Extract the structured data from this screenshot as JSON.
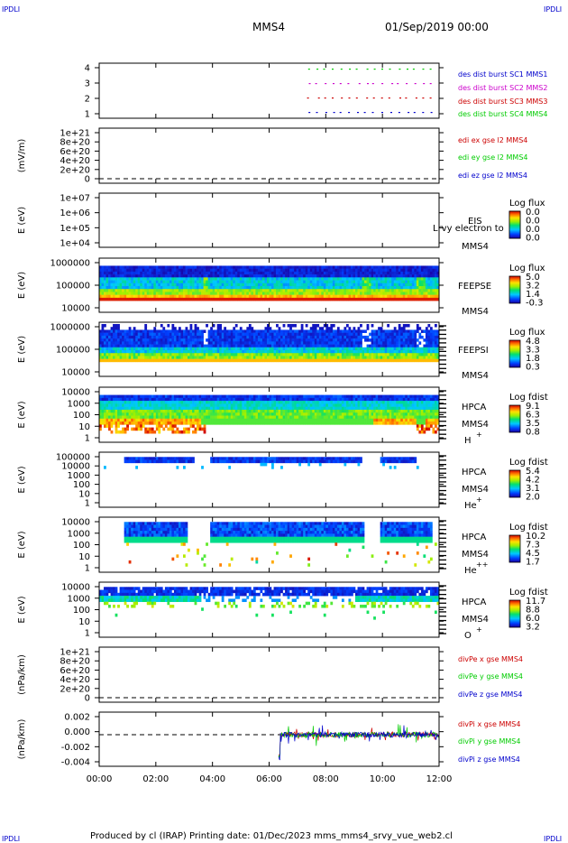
{
  "header": {
    "corner_left": "IPDLI",
    "corner_right": "IPDLI",
    "spacecraft": "MMS4",
    "datetime": "01/Sep/2019 00:00"
  },
  "footer": {
    "text": "Produced by cl (IRAP)   Printing date: 01/Dec/2023   mms_mms4_srvy_vue_web2.cl",
    "corner_left": "IPDLI",
    "corner_right": "IPDLI"
  },
  "colors": {
    "blue": "#0000cc",
    "magenta": "#cc00cc",
    "red": "#cc0000",
    "green": "#00cc00"
  },
  "chart_data": {
    "type": "multi-panel time series",
    "x_ticks": [
      "00:00",
      "02:00",
      "04:00",
      "06:00",
      "08:00",
      "10:00",
      "12:00"
    ],
    "panels": [
      {
        "id": "p1",
        "ylabel": "",
        "yticks": [
          "4",
          "3",
          "2",
          "1"
        ],
        "legend": [
          {
            "text": "des dist burst SC1 MMS1",
            "color": "#0000cc"
          },
          {
            "text": "des dist burst SC2 MMS2",
            "color": "#cc00cc"
          },
          {
            "text": "des dist burst SC3 MMS3",
            "color": "#cc0000"
          },
          {
            "text": "des dist burst SC4 MMS4",
            "color": "#00cc00"
          }
        ]
      },
      {
        "id": "p2",
        "ylabel": "(mV/m)",
        "yticks": [
          "1e+21",
          "8e+20",
          "6e+20",
          "4e+20",
          "2e+20",
          "0"
        ],
        "legend": [
          {
            "text": "edi ex gse l2 MMS4",
            "color": "#cc0000"
          },
          {
            "text": "edi ey gse l2 MMS4",
            "color": "#00cc00"
          },
          {
            "text": "edi ez gse l2 MMS4",
            "color": "#0000cc"
          }
        ]
      },
      {
        "id": "p3",
        "ylabel": "E (eV)",
        "yticks": [
          "1e+07",
          "1e+06",
          "1e+05",
          "1e+04"
        ],
        "labels": [
          "EIS",
          "MMS4",
          "Lrvy electron to"
        ],
        "colorbar": {
          "title": "Log flux",
          "ticks": [
            "0.0",
            "0.0",
            "0.0",
            "0.0"
          ]
        }
      },
      {
        "id": "p4",
        "ylabel": "E (eV)",
        "yticks": [
          "1000000",
          "100000",
          "10000"
        ],
        "labels": [
          "FEEPSE",
          "MMS4"
        ],
        "colorbar": {
          "title": "Log flux",
          "ticks": [
            "5.0",
            "3.2",
            "1.4",
            "-0.3"
          ]
        }
      },
      {
        "id": "p5",
        "ylabel": "E (eV)",
        "yticks": [
          "1000000",
          "100000",
          "10000"
        ],
        "labels": [
          "FEEPSI",
          "MMS4"
        ],
        "colorbar": {
          "title": "Log flux",
          "ticks": [
            "4.8",
            "3.3",
            "1.8",
            "0.3"
          ]
        }
      },
      {
        "id": "p6",
        "ylabel": "E (eV)",
        "yticks": [
          "10000",
          "1000",
          "100",
          "10",
          "1"
        ],
        "labels": [
          "HPCA",
          "MMS4",
          "H",
          "+"
        ],
        "colorbar": {
          "title": "Log fdist",
          "ticks": [
            "9.1",
            "6.3",
            "3.5",
            "0.8"
          ]
        }
      },
      {
        "id": "p7",
        "ylabel": "E (eV)",
        "yticks": [
          "100000",
          "10000",
          "1000",
          "100",
          "10",
          "1"
        ],
        "labels": [
          "HPCA",
          "MMS4",
          "He",
          "+"
        ],
        "colorbar": {
          "title": "Log fdist",
          "ticks": [
            "5.4",
            "4.2",
            "3.1",
            "2.0"
          ]
        }
      },
      {
        "id": "p8",
        "ylabel": "E (eV)",
        "yticks": [
          "10000",
          "1000",
          "100",
          "10",
          "1"
        ],
        "labels": [
          "HPCA",
          "MMS4",
          "He",
          "++"
        ],
        "colorbar": {
          "title": "Log fdist",
          "ticks": [
            "10.2",
            "7.3",
            "4.5",
            "1.7"
          ]
        }
      },
      {
        "id": "p9",
        "ylabel": "E (eV)",
        "yticks": [
          "10000",
          "1000",
          "100",
          "10",
          "1"
        ],
        "labels": [
          "HPCA",
          "MMS4",
          "O",
          "+"
        ],
        "colorbar": {
          "title": "Log fdist",
          "ticks": [
            "11.7",
            "8.8",
            "6.0",
            "3.2"
          ]
        }
      },
      {
        "id": "p10",
        "ylabel": "(nPa/km)",
        "yticks": [
          "1e+21",
          "8e+20",
          "6e+20",
          "4e+20",
          "2e+20",
          "0"
        ],
        "legend": [
          {
            "text": "divPe x gse MMS4",
            "color": "#cc0000"
          },
          {
            "text": "divPe y gse MMS4",
            "color": "#00cc00"
          },
          {
            "text": "divPe z gse MMS4",
            "color": "#0000cc"
          }
        ]
      },
      {
        "id": "p11",
        "ylabel": "(nPa/km)",
        "yticks": [
          "0.002",
          "0.000",
          "-0.002",
          "-0.004"
        ],
        "legend": [
          {
            "text": "divPi x gse MMS4",
            "color": "#cc0000"
          },
          {
            "text": "divPi y gse MMS4",
            "color": "#00cc00"
          },
          {
            "text": "divPi z gse MMS4",
            "color": "#0000cc"
          }
        ]
      }
    ]
  }
}
